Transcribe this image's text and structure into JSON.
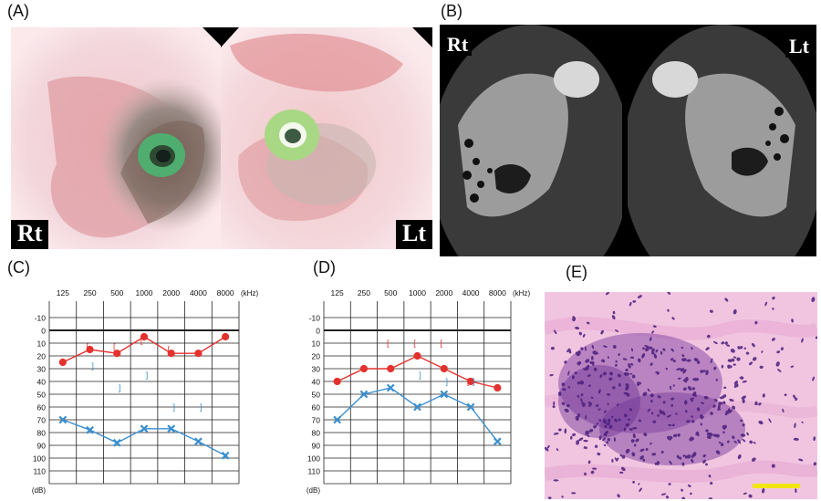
{
  "panels": {
    "a": {
      "letter": "(A)",
      "right_tag": "Rt",
      "left_tag": "Lt"
    },
    "b": {
      "letter": "(B)",
      "right_tag": "Rt",
      "left_tag": "Lt"
    },
    "c": {
      "letter": "(C)"
    },
    "d": {
      "letter": "(D)"
    },
    "e": {
      "letter": "(E)"
    }
  },
  "colors": {
    "right_ear": "#e3322e",
    "left_ear": "#3a8fd0",
    "scale_bar": "#f2e512"
  },
  "chart_data": [
    {
      "type": "line",
      "panel": "(C)",
      "categories": [
        "125",
        "250",
        "500",
        "1000",
        "2000",
        "4000",
        "8000"
      ],
      "x_unit": "(kHz)",
      "y_unit": "(dB)",
      "yticks": [
        "-10",
        "0",
        "10",
        "20",
        "30",
        "40",
        "50",
        "60",
        "70",
        "80",
        "90",
        "100",
        "110"
      ],
      "ylim": [
        -10,
        110
      ],
      "y_inverted": true,
      "grid": true,
      "series": [
        {
          "values": [
            25,
            15,
            18,
            5,
            18,
            18,
            5
          ],
          "marker": "circle",
          "color": "#e3322e"
        },
        {
          "values": [
            70,
            78,
            88,
            77,
            77,
            87,
            98
          ],
          "marker": "cross",
          "color": "#3a8fd0"
        }
      ],
      "bone_right": [
        null,
        13,
        13,
        8,
        15,
        null,
        null
      ],
      "bone_left": [
        null,
        28,
        45,
        35,
        60,
        60,
        null
      ]
    },
    {
      "type": "line",
      "panel": "(D)",
      "categories": [
        "125",
        "250",
        "500",
        "1000",
        "2000",
        "4000",
        "8000"
      ],
      "x_unit": "(kHz)",
      "y_unit": "(dB)",
      "yticks": [
        "-10",
        "0",
        "10",
        "20",
        "30",
        "40",
        "50",
        "60",
        "70",
        "80",
        "90",
        "100",
        "110"
      ],
      "ylim": [
        -10,
        110
      ],
      "y_inverted": true,
      "grid": true,
      "series": [
        {
          "values": [
            40,
            30,
            30,
            20,
            30,
            40,
            45
          ],
          "marker": "circle",
          "color": "#e3322e"
        },
        {
          "values": [
            70,
            50,
            45,
            60,
            50,
            60,
            87
          ],
          "marker": "cross",
          "color": "#3a8fd0"
        }
      ],
      "bone_right": [
        null,
        null,
        10,
        10,
        10,
        40,
        null
      ],
      "bone_left": [
        null,
        null,
        null,
        35,
        40,
        40,
        null
      ]
    }
  ]
}
